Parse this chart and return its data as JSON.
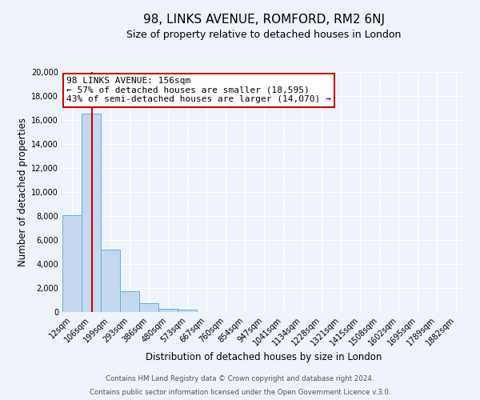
{
  "title": "98, LINKS AVENUE, ROMFORD, RM2 6NJ",
  "subtitle": "Size of property relative to detached houses in London",
  "xlabel": "Distribution of detached houses by size in London",
  "ylabel": "Number of detached properties",
  "bar_labels": [
    "12sqm",
    "106sqm",
    "199sqm",
    "293sqm",
    "386sqm",
    "480sqm",
    "573sqm",
    "667sqm",
    "760sqm",
    "854sqm",
    "947sqm",
    "1041sqm",
    "1134sqm",
    "1228sqm",
    "1321sqm",
    "1415sqm",
    "1508sqm",
    "1602sqm",
    "1695sqm",
    "1789sqm",
    "1882sqm"
  ],
  "bar_values": [
    8050,
    16500,
    5200,
    1750,
    750,
    300,
    200,
    0,
    0,
    0,
    0,
    0,
    0,
    0,
    0,
    0,
    0,
    0,
    0,
    0,
    0
  ],
  "bar_color": "#c5d8ef",
  "bar_edge_color": "#6aaed6",
  "vline_x": 1.55,
  "vline_color": "#cc0000",
  "annotation_title": "98 LINKS AVENUE: 156sqm",
  "annotation_line1": "← 57% of detached houses are smaller (18,595)",
  "annotation_line2": "43% of semi-detached houses are larger (14,070) →",
  "annotation_box_color": "#ffffff",
  "annotation_box_edge": "#cc0000",
  "ylim": [
    0,
    20000
  ],
  "yticks": [
    0,
    2000,
    4000,
    6000,
    8000,
    10000,
    12000,
    14000,
    16000,
    18000,
    20000
  ],
  "footer1": "Contains HM Land Registry data © Crown copyright and database right 2024.",
  "footer2": "Contains public sector information licensed under the Open Government Licence v.3.0.",
  "bg_color": "#eef2f9",
  "grid_color": "#ffffff",
  "title_fontsize": 11,
  "subtitle_fontsize": 9,
  "axis_label_fontsize": 8.5,
  "tick_fontsize": 7,
  "annot_fontsize": 8
}
